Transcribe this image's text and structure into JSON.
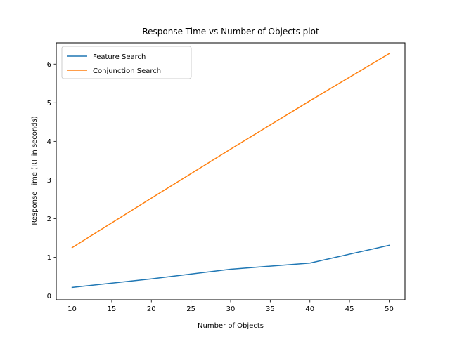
{
  "chart_data": {
    "type": "line",
    "title": "Response Time vs Number of Objects plot",
    "xlabel": "Number of Objects",
    "ylabel": "Response Time (RT in seconds)",
    "x": [
      10,
      20,
      30,
      40,
      50
    ],
    "xlim": [
      8,
      52
    ],
    "ylim": [
      -0.1,
      6.55
    ],
    "xticks": [
      10,
      15,
      20,
      25,
      30,
      35,
      40,
      45,
      50
    ],
    "yticks": [
      0,
      1,
      2,
      3,
      4,
      5,
      6
    ],
    "grid": false,
    "legend_position": "upper-left",
    "series": [
      {
        "name": "Feature Search",
        "color": "#1f77b4",
        "values": [
          0.22,
          0.44,
          0.69,
          0.85,
          1.31
        ]
      },
      {
        "name": "Conjunction Search",
        "color": "#ff7f0e",
        "values": [
          1.25,
          2.53,
          3.8,
          5.05,
          6.27
        ]
      }
    ]
  }
}
